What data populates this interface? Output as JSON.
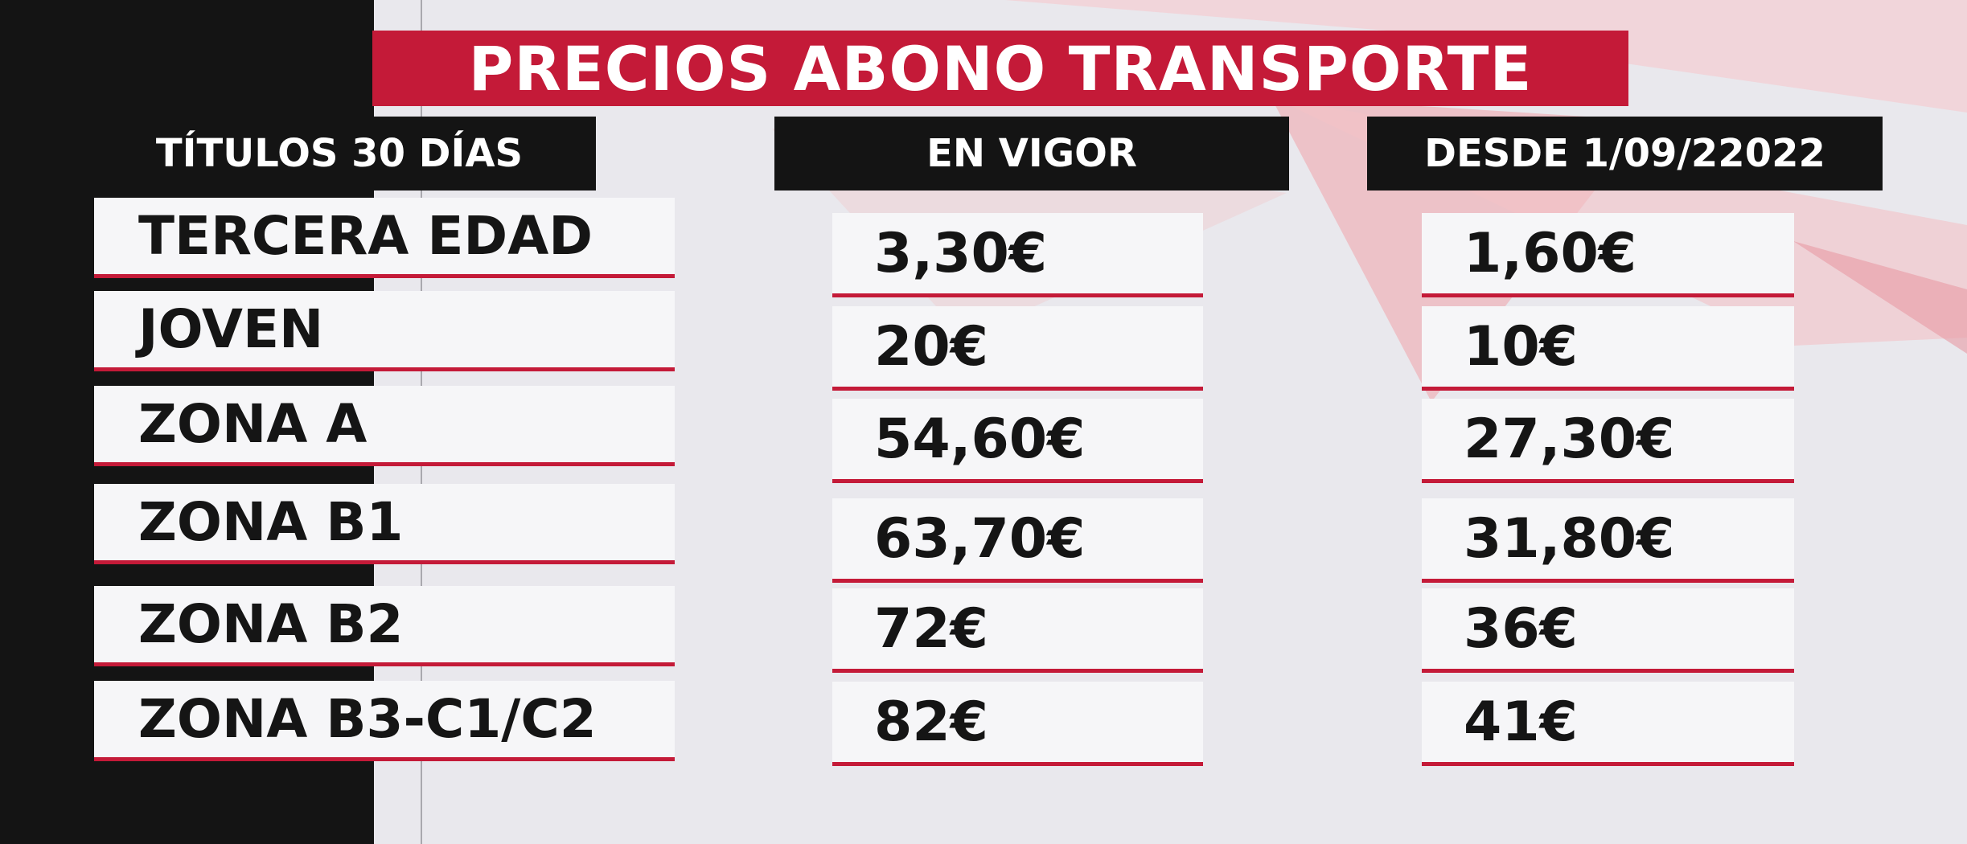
{
  "title": "PRECIOS ABONO TRANSPORTE",
  "columns": {
    "titulos": "TÍTULOS 30 DÍAS",
    "en_vigor": "EN VIGOR",
    "desde": "DESDE 1/09/22022"
  },
  "rows": [
    {
      "label": "TERCERA EDAD",
      "en_vigor": "3,30€",
      "desde": "1,60€"
    },
    {
      "label": "JOVEN",
      "en_vigor": "20€",
      "desde": "10€"
    },
    {
      "label": "ZONA A",
      "en_vigor": "54,60€",
      "desde": "27,30€"
    },
    {
      "label": "ZONA B1",
      "en_vigor": "63,70€",
      "desde": "31,80€"
    },
    {
      "label": "ZONA B2",
      "en_vigor": "72€",
      "desde": "36€"
    },
    {
      "label": "ZONA B3-C1/C2",
      "en_vigor": "82€",
      "desde": "41€"
    }
  ],
  "colors": {
    "accent_red": "#c41a38",
    "black_bar": "#141414",
    "cell_bg": "#f6f6f8",
    "background": "#e9e8ed"
  }
}
